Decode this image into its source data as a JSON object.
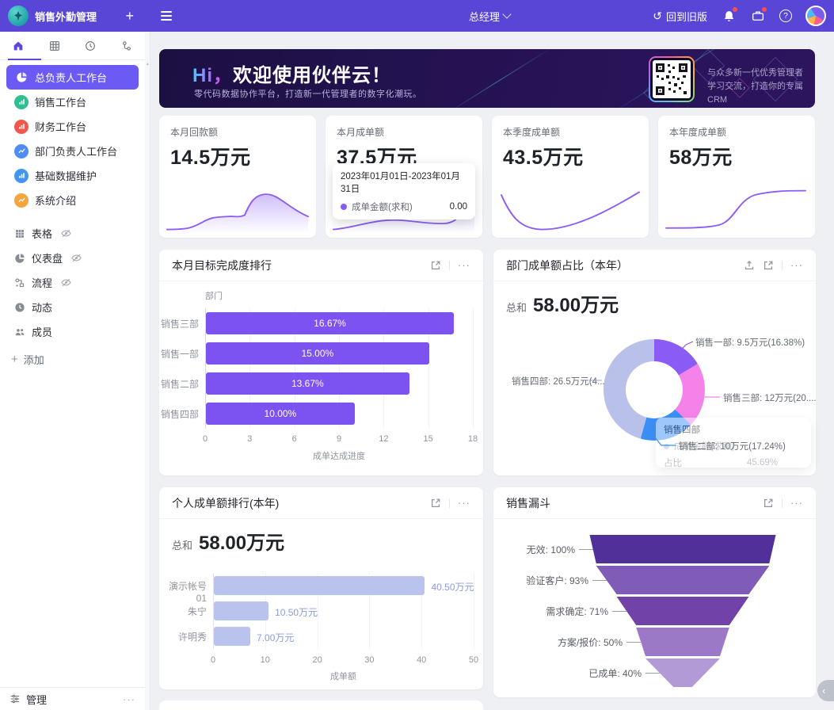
{
  "app": {
    "title": "销售外勤管理"
  },
  "topbar": {
    "role": "总经理",
    "back_to_old": "回到旧版",
    "icons": [
      "plus-icon",
      "menu-icon",
      "chevron-down-icon",
      "history-icon",
      "bell-icon",
      "workbench-icon",
      "help-icon",
      "avatar"
    ]
  },
  "sidebar": {
    "tabs": [
      "home",
      "table",
      "recent",
      "org"
    ],
    "items": [
      {
        "label": "总负责人工作台",
        "active": true,
        "icon": "pie-chart-icon",
        "icon_color": "#6c5af5"
      },
      {
        "label": "销售工作台",
        "active": false,
        "icon": "bar-chart-icon",
        "icon_color": "#2fbf93"
      },
      {
        "label": "财务工作台",
        "active": false,
        "icon": "bar-chart-icon",
        "icon_color": "#f2564d"
      },
      {
        "label": "部门负责人工作台",
        "active": false,
        "icon": "line-chart-icon",
        "icon_color": "#4e8df6"
      },
      {
        "label": "基础数据维护",
        "active": false,
        "icon": "bar-chart-icon",
        "icon_color": "#4196f0"
      },
      {
        "label": "系统介绍",
        "active": false,
        "icon": "line-chart-icon",
        "icon_color": "#f6a43c"
      }
    ],
    "tools": [
      {
        "label": "表格",
        "icon": "grid-icon",
        "hidden": true
      },
      {
        "label": "仪表盘",
        "icon": "dashboard-icon",
        "hidden": true
      },
      {
        "label": "流程",
        "icon": "flow-icon",
        "hidden": true
      },
      {
        "label": "动态",
        "icon": "clock-icon",
        "hidden": false
      },
      {
        "label": "成员",
        "icon": "members-icon",
        "hidden": false
      }
    ],
    "add_label": "添加",
    "manage_label": "管理"
  },
  "banner": {
    "greeting": "Hi，",
    "title": "欢迎使用伙伴云！",
    "subtitle": "零代码数据协作平台，打造新一代管理者的数字化潮玩。",
    "qr_caption_line1": "与众多新一代优秀管理者",
    "qr_caption_line2": "学习交流，打造你的专属CRM"
  },
  "stat_cards": [
    {
      "label": "本月回款额",
      "value": "14.5万元"
    },
    {
      "label": "本月成单额",
      "value": "37.5万元",
      "tooltip": {
        "date_range": "2023年01月01日-2023年01月31日",
        "series": "成单金额(求和)",
        "value": "0.00"
      }
    },
    {
      "label": "本季度成单额",
      "value": "43.5万元"
    },
    {
      "label": "本年度成单额",
      "value": "58万元"
    }
  ],
  "chart_data": [
    {
      "id": "dept-target",
      "type": "bar",
      "orientation": "horizontal",
      "title": "本月目标完成度排行",
      "categories": [
        "销售三部",
        "销售一部",
        "销售二部",
        "销售四部"
      ],
      "values": [
        16.67,
        15.0,
        13.67,
        10.0
      ],
      "bar_labels": [
        "16.67%",
        "15.00%",
        "13.67%",
        "10.00%"
      ],
      "xlabel": "成单达成进度",
      "ylabel": "部门",
      "xlim": [
        0,
        18
      ],
      "xticks": [
        0,
        3,
        6,
        9,
        12,
        15,
        18
      ],
      "bar_color": "#7c52f0",
      "grid": true
    },
    {
      "id": "dept-share",
      "type": "pie",
      "title": "部门成单额占比（本年）",
      "total_label": "总和",
      "total_value": "58.00万元",
      "segments": [
        {
          "name": "销售一部",
          "value": 9.5,
          "percent": 16.38,
          "callout": "销售一部: 9.5万元(16.38%)",
          "color": "#8a5cf5"
        },
        {
          "name": "销售三部",
          "value": 12,
          "percent": 20.69,
          "callout": "销售三部: 12万元(20....",
          "color": "#f582e8"
        },
        {
          "name": "销售二部",
          "value": 10,
          "percent": 17.24,
          "callout": "销售二部: 10万元(17.24%)",
          "color": "#3a8ff7"
        },
        {
          "name": "销售四部",
          "value": 26.5,
          "percent": 45.69,
          "callout": "销售四部: 26.5万元(4...",
          "color": "#b9c1ea"
        }
      ],
      "tooltip": {
        "title": "销售四部",
        "row_label": "成单金额(求和)",
        "percent_label": "占比",
        "percent_value": "45.69%"
      }
    },
    {
      "id": "personal-rank",
      "type": "bar",
      "orientation": "horizontal",
      "title": "个人成单额排行(本年)",
      "total_label": "总和",
      "total_value": "58.00万元",
      "categories": [
        "演示帐号01",
        "朱宁",
        "许明秀"
      ],
      "values": [
        40.5,
        10.5,
        7.0
      ],
      "bar_labels": [
        "40.50万元",
        "10.50万元",
        "7.00万元"
      ],
      "xlabel": "成单额",
      "xlim": [
        0,
        50
      ],
      "xticks": [
        0,
        10,
        20,
        30,
        40,
        50
      ],
      "bar_color": "#b9c3ee",
      "label_color": "#8b9be6",
      "grid": true
    },
    {
      "id": "sales-funnel",
      "type": "funnel",
      "title": "销售漏斗",
      "stages": [
        {
          "label": "无效: 100%",
          "percent": 100,
          "color": "#51309a"
        },
        {
          "label": "验证客户: 93%",
          "percent": 93,
          "color": "#7e5cb8"
        },
        {
          "label": "需求确定: 71%",
          "percent": 71,
          "color": "#7142a8"
        },
        {
          "label": "方案/报价: 50%",
          "percent": 50,
          "color": "#9b79c6"
        },
        {
          "label": "已成单: 40%",
          "percent": 40,
          "color": "#b29ad6"
        }
      ]
    }
  ],
  "colors": {
    "topbar": "#5946d7",
    "accent": "#6c5af5",
    "spark": "#8b5cf6"
  }
}
